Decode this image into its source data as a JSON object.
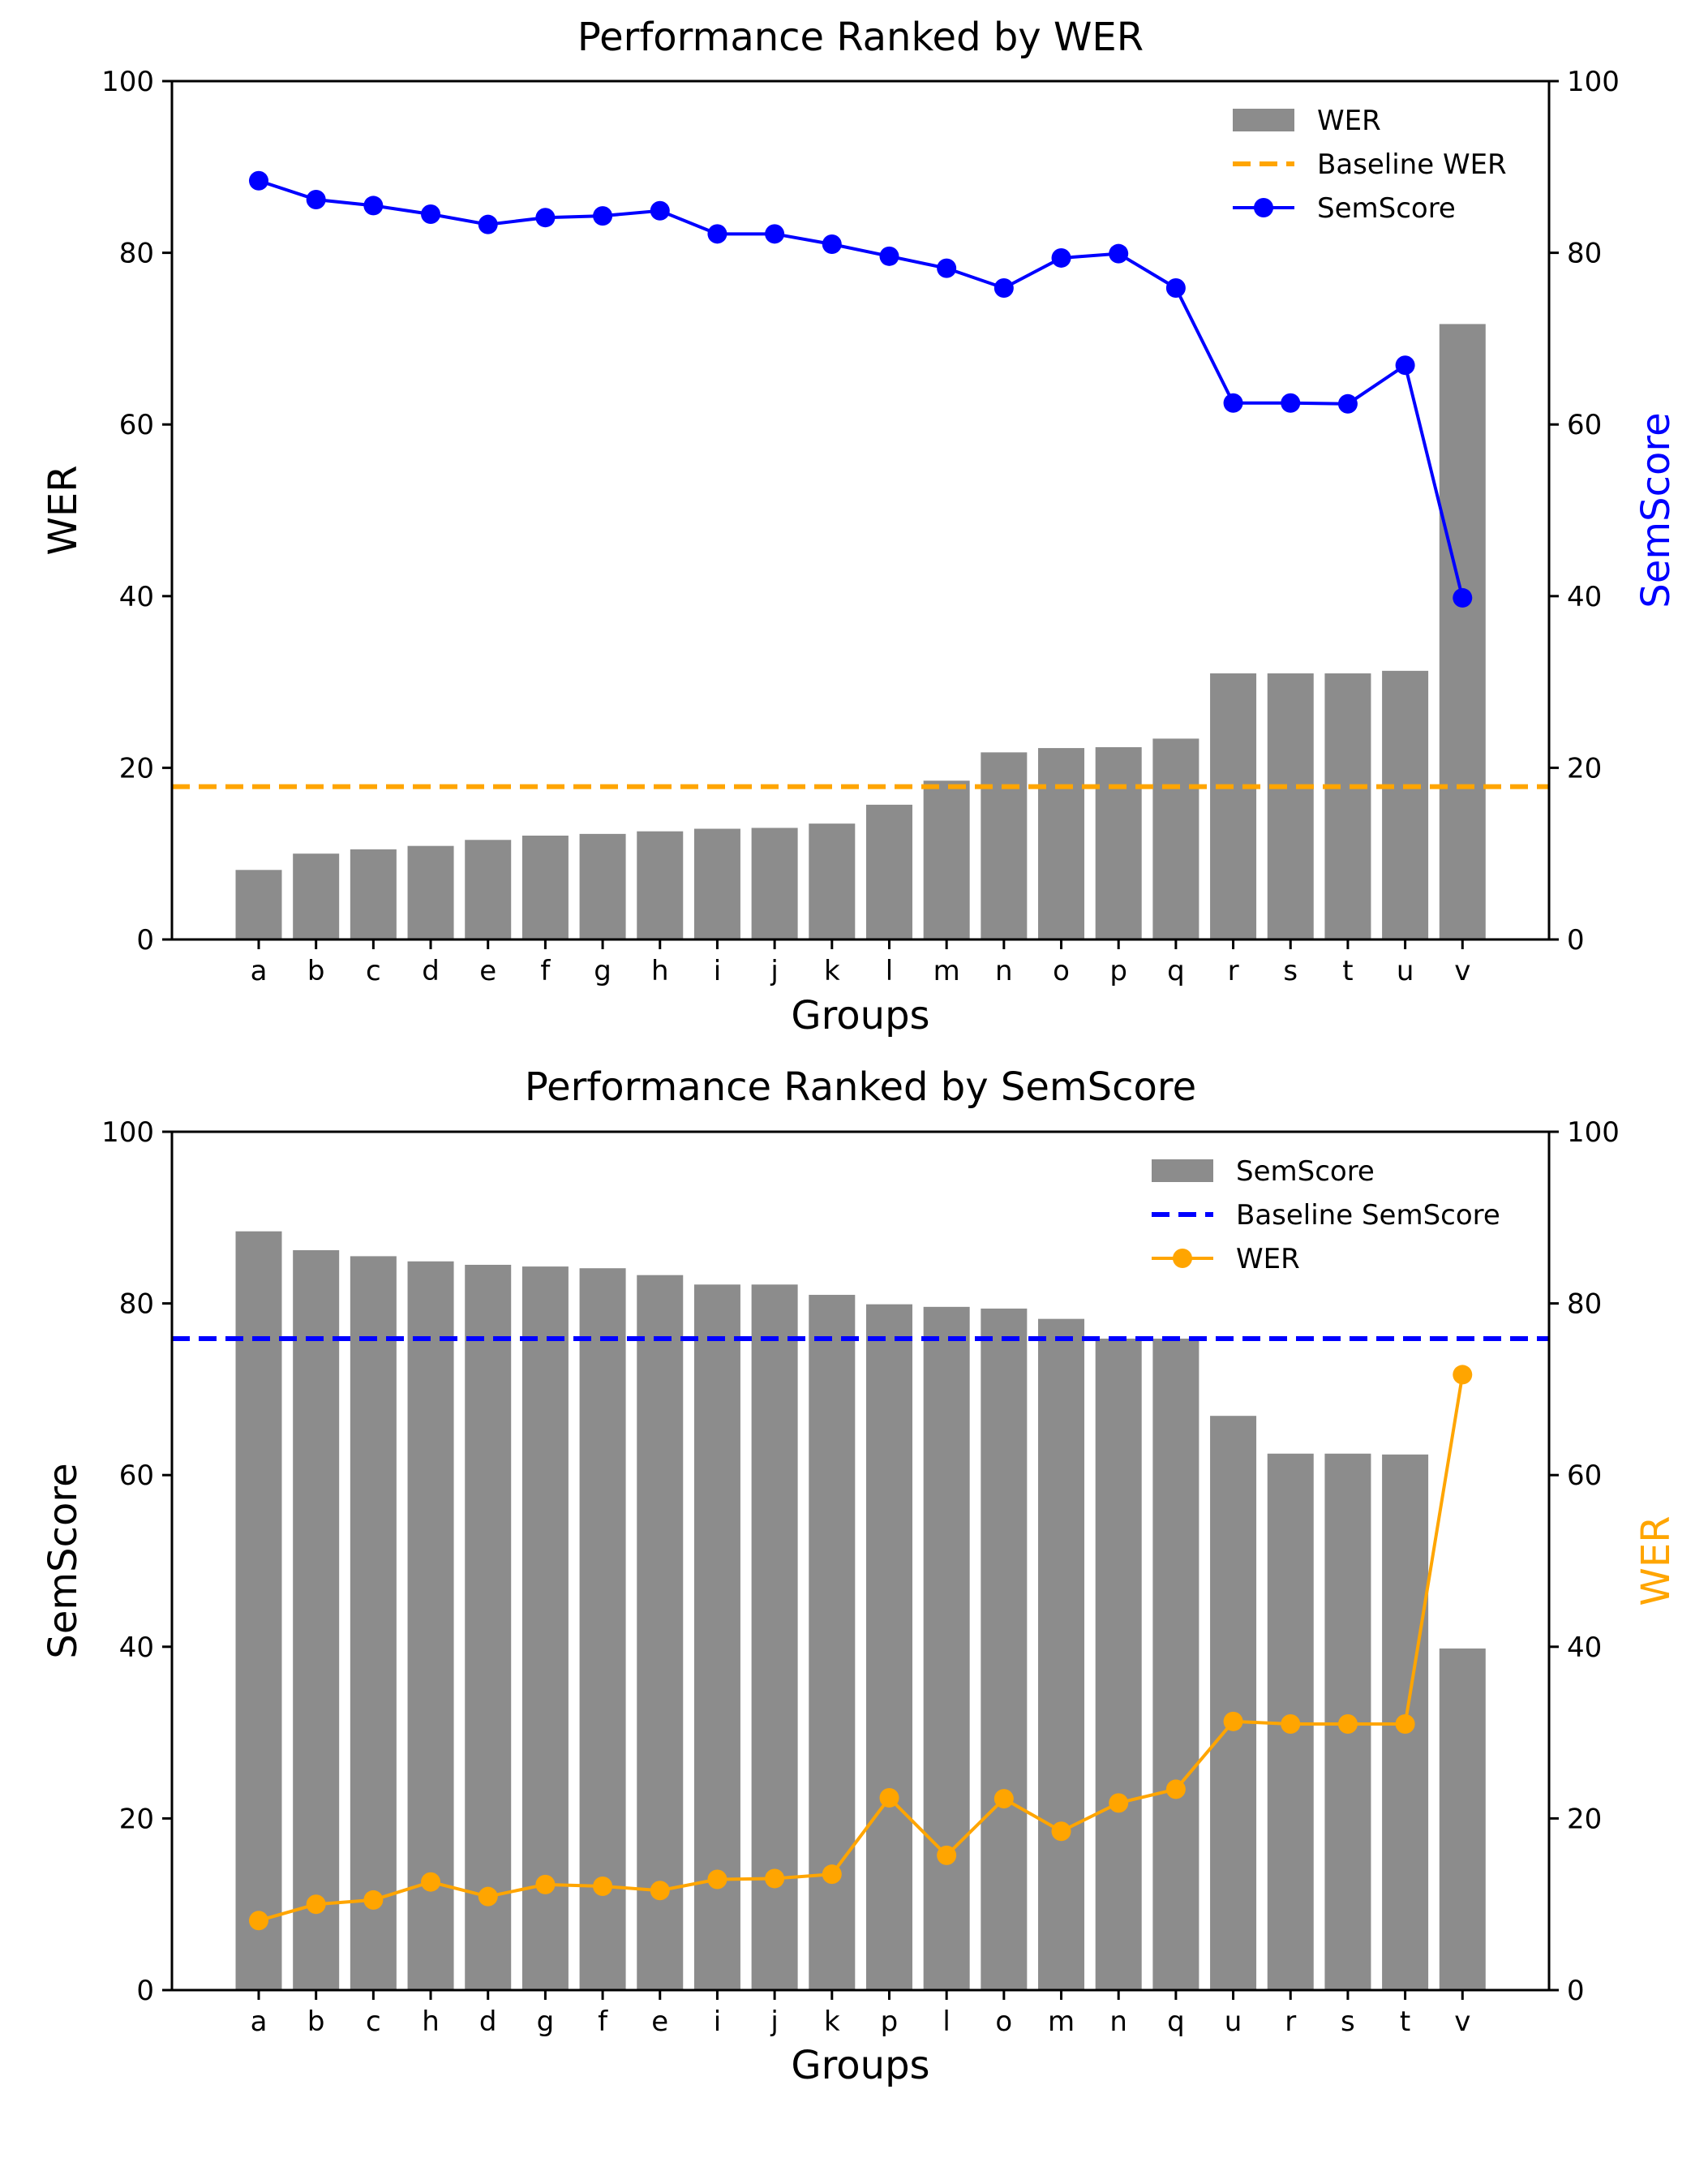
{
  "chart_data": [
    {
      "type": "bar",
      "title": "Performance Ranked by WER",
      "xlabel": "Groups",
      "ylabel": "WER",
      "ylabel_right": "SemScore",
      "ylabel_right_color": "#0000ff",
      "ylim": [
        0,
        100
      ],
      "ylim_right": [
        0,
        100
      ],
      "yticks": [
        "0",
        "20",
        "40",
        "60",
        "80",
        "100"
      ],
      "categories": [
        "a",
        "b",
        "c",
        "d",
        "e",
        "f",
        "g",
        "h",
        "i",
        "j",
        "k",
        "l",
        "m",
        "n",
        "o",
        "p",
        "q",
        "r",
        "s",
        "t",
        "u",
        "v"
      ],
      "bar_series": {
        "name": "WER",
        "color": "#8c8c8c",
        "values": [
          8.1,
          10.0,
          10.5,
          10.9,
          11.6,
          12.1,
          12.3,
          12.6,
          12.9,
          13.0,
          13.5,
          15.7,
          18.5,
          21.8,
          22.3,
          22.4,
          23.4,
          31.0,
          31.0,
          31.0,
          31.3,
          71.7
        ]
      },
      "baseline": {
        "name": "Baseline WER",
        "value": 17.8,
        "color": "#ffa500"
      },
      "line_series": {
        "name": "SemScore",
        "color": "#0000ff",
        "values": [
          88.4,
          86.2,
          85.5,
          84.5,
          83.3,
          84.1,
          84.3,
          84.9,
          82.2,
          82.2,
          81.0,
          79.6,
          78.2,
          75.9,
          79.4,
          79.9,
          75.9,
          62.5,
          62.5,
          62.4,
          66.9,
          39.8
        ]
      },
      "legend": "top-right",
      "grid": false
    },
    {
      "type": "bar",
      "title": "Performance Ranked by SemScore",
      "xlabel": "Groups",
      "ylabel": "SemScore",
      "ylabel_right": "WER",
      "ylabel_right_color": "#ffa500",
      "ylim": [
        0,
        100
      ],
      "ylim_right": [
        0,
        100
      ],
      "yticks": [
        "0",
        "20",
        "40",
        "60",
        "80",
        "100"
      ],
      "categories": [
        "a",
        "b",
        "c",
        "h",
        "d",
        "g",
        "f",
        "e",
        "i",
        "j",
        "k",
        "p",
        "l",
        "o",
        "m",
        "n",
        "q",
        "u",
        "r",
        "s",
        "t",
        "v"
      ],
      "bar_series": {
        "name": "SemScore",
        "color": "#8c8c8c",
        "values": [
          88.4,
          86.2,
          85.5,
          84.9,
          84.5,
          84.3,
          84.1,
          83.3,
          82.2,
          82.2,
          81.0,
          79.9,
          79.6,
          79.4,
          78.2,
          75.9,
          75.9,
          66.9,
          62.5,
          62.5,
          62.4,
          39.8
        ]
      },
      "baseline": {
        "name": "Baseline SemScore",
        "value": 75.9,
        "color": "#0000ff"
      },
      "line_series": {
        "name": "WER",
        "color": "#ffa500",
        "values": [
          8.1,
          10.0,
          10.5,
          12.6,
          10.9,
          12.3,
          12.1,
          11.6,
          12.9,
          13.0,
          13.5,
          22.4,
          15.7,
          22.3,
          18.5,
          21.8,
          23.4,
          31.3,
          31.0,
          31.0,
          31.0,
          71.7
        ]
      },
      "legend": "top-right",
      "grid": false
    }
  ]
}
